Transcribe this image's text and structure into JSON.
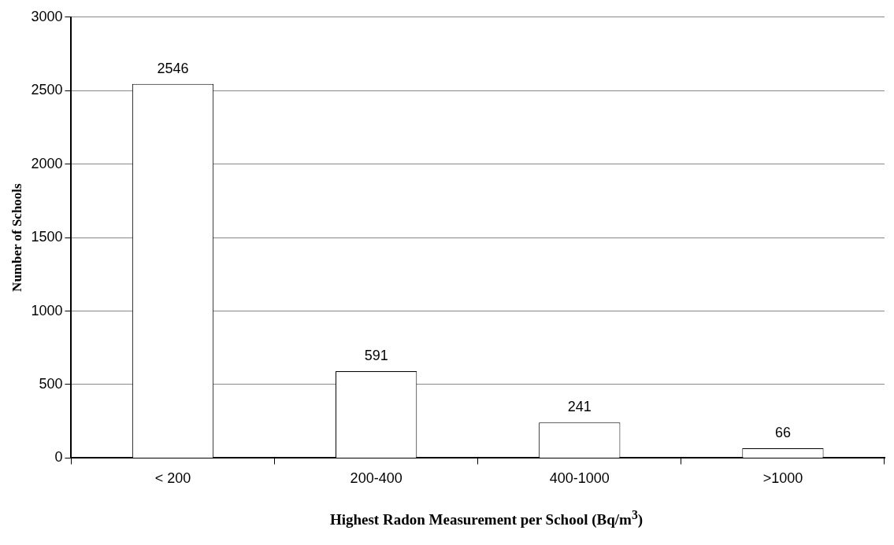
{
  "chart_data": {
    "type": "bar",
    "xlabel": "Highest Radon Measurement per School (Bq/m$^{3}$)",
    "ylabel": "Number of Schools",
    "categories": [
      "< 200",
      "200-400",
      "400-1000",
      ">1000"
    ],
    "values": [
      2546,
      591,
      241,
      66
    ],
    "color": "#ffffff",
    "ylim": [
      0,
      3000
    ],
    "yticks": [
      0,
      500,
      1000,
      1500,
      2000,
      2500,
      3000
    ],
    "grid": "y",
    "data_labels": true,
    "legend": false
  }
}
